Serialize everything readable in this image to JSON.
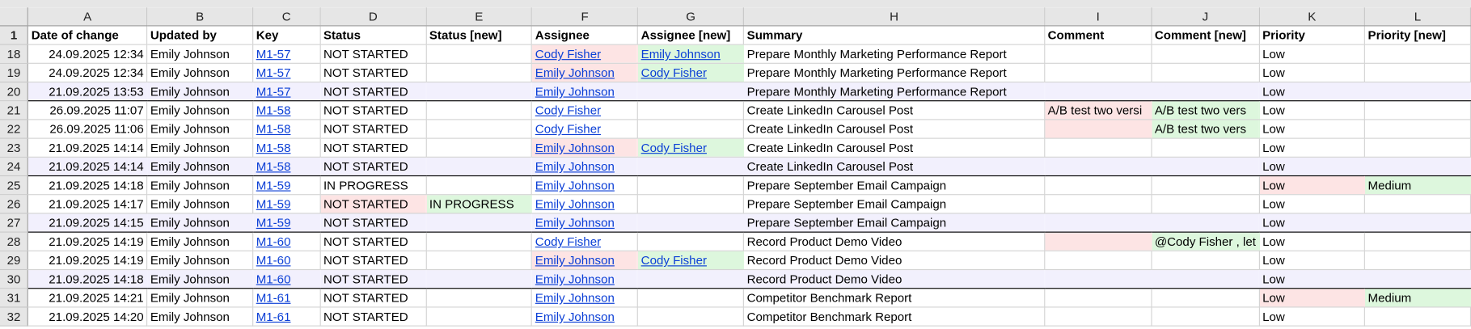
{
  "columns": [
    "A",
    "B",
    "C",
    "D",
    "E",
    "F",
    "G",
    "H",
    "I",
    "J",
    "K",
    "L"
  ],
  "header_row": {
    "num": "1",
    "cells": [
      "Date of change",
      "Updated by",
      "Key",
      "Status",
      "Status [new]",
      "Assignee",
      "Assignee [new]",
      "Summary",
      "Comment",
      "Comment [new]",
      "Priority",
      "Priority [new]"
    ]
  },
  "highlight_colors": {
    "pink": "#fde4e4",
    "green": "#ddf7dd",
    "group_row": "#f2f0fd",
    "link": "#0b3fd6"
  },
  "rows": [
    {
      "num": "18",
      "cells": [
        "24.09.2025 12:34",
        "Emily Johnson",
        "M1-57",
        "NOT STARTED",
        "",
        "Cody Fisher",
        "Emily Johnson",
        "Prepare Monthly Marketing Performance Report",
        "",
        "",
        "Low",
        ""
      ],
      "hl": {
        "F": "pink",
        "G": "green"
      }
    },
    {
      "num": "19",
      "cells": [
        "24.09.2025 12:34",
        "Emily Johnson",
        "M1-57",
        "NOT STARTED",
        "",
        "Emily Johnson",
        "Cody Fisher",
        "Prepare Monthly Marketing Performance Report",
        "",
        "",
        "Low",
        ""
      ],
      "hl": {
        "F": "pink",
        "G": "green"
      }
    },
    {
      "num": "20",
      "cells": [
        "21.09.2025 13:53",
        "Emily Johnson",
        "M1-57",
        "NOT STARTED",
        "",
        "Emily Johnson",
        "",
        "Prepare Monthly Marketing Performance Report",
        "",
        "",
        "Low",
        ""
      ],
      "group": true
    },
    {
      "num": "21",
      "cells": [
        "26.09.2025 11:07",
        "Emily Johnson",
        "M1-58",
        "NOT STARTED",
        "",
        "Cody Fisher",
        "",
        "Create LinkedIn Carousel Post",
        "A/B test two versi",
        "A/B test two vers",
        "Low",
        ""
      ],
      "hl": {
        "I": "pink",
        "J": "green"
      }
    },
    {
      "num": "22",
      "cells": [
        "26.09.2025 11:06",
        "Emily Johnson",
        "M1-58",
        "NOT STARTED",
        "",
        "Cody Fisher",
        "",
        "Create LinkedIn Carousel Post",
        "",
        "A/B test two vers",
        "Low",
        ""
      ],
      "hl": {
        "I": "pink",
        "J": "green"
      }
    },
    {
      "num": "23",
      "cells": [
        "21.09.2025 14:14",
        "Emily Johnson",
        "M1-58",
        "NOT STARTED",
        "",
        "Emily Johnson",
        "Cody Fisher",
        "Create LinkedIn Carousel Post",
        "",
        "",
        "Low",
        ""
      ],
      "hl": {
        "F": "pink",
        "G": "green"
      }
    },
    {
      "num": "24",
      "cells": [
        "21.09.2025 14:14",
        "Emily Johnson",
        "M1-58",
        "NOT STARTED",
        "",
        "Emily Johnson",
        "",
        "Create LinkedIn Carousel Post",
        "",
        "",
        "Low",
        ""
      ],
      "group": true
    },
    {
      "num": "25",
      "cells": [
        "21.09.2025 14:18",
        "Emily Johnson",
        "M1-59",
        "IN PROGRESS",
        "",
        "Emily Johnson",
        "",
        "Prepare September Email Campaign",
        "",
        "",
        "Low",
        "Medium"
      ],
      "hl": {
        "K": "pink",
        "L": "green"
      }
    },
    {
      "num": "26",
      "cells": [
        "21.09.2025 14:17",
        "Emily Johnson",
        "M1-59",
        "NOT STARTED",
        "IN PROGRESS",
        "Emily Johnson",
        "",
        "Prepare September Email Campaign",
        "",
        "",
        "Low",
        ""
      ],
      "hl": {
        "D": "pink",
        "E": "green"
      }
    },
    {
      "num": "27",
      "cells": [
        "21.09.2025 14:15",
        "Emily Johnson",
        "M1-59",
        "NOT STARTED",
        "",
        "Emily Johnson",
        "",
        "Prepare September Email Campaign",
        "",
        "",
        "Low",
        ""
      ],
      "group": true
    },
    {
      "num": "28",
      "cells": [
        "21.09.2025 14:19",
        "Emily Johnson",
        "M1-60",
        "NOT STARTED",
        "",
        "Cody Fisher",
        "",
        "Record Product Demo Video",
        "",
        "@Cody Fisher , let",
        "Low",
        ""
      ],
      "hl": {
        "I": "pink",
        "J": "green"
      }
    },
    {
      "num": "29",
      "cells": [
        "21.09.2025 14:19",
        "Emily Johnson",
        "M1-60",
        "NOT STARTED",
        "",
        "Emily Johnson",
        "Cody Fisher",
        "Record Product Demo Video",
        "",
        "",
        "Low",
        ""
      ],
      "hl": {
        "F": "pink",
        "G": "green"
      }
    },
    {
      "num": "30",
      "cells": [
        "21.09.2025 14:18",
        "Emily Johnson",
        "M1-60",
        "NOT STARTED",
        "",
        "Emily Johnson",
        "",
        "Record Product Demo Video",
        "",
        "",
        "Low",
        ""
      ],
      "group": true
    },
    {
      "num": "31",
      "cells": [
        "21.09.2025 14:21",
        "Emily Johnson",
        "M1-61",
        "NOT STARTED",
        "",
        "Emily Johnson",
        "",
        "Competitor Benchmark Report",
        "",
        "",
        "Low",
        "Medium"
      ],
      "hl": {
        "K": "pink",
        "L": "green"
      }
    },
    {
      "num": "32",
      "cells": [
        "21.09.2025 14:20",
        "Emily Johnson",
        "M1-61",
        "NOT STARTED",
        "",
        "Emily Johnson",
        "",
        "Competitor Benchmark Report",
        "",
        "",
        "Low",
        ""
      ]
    }
  ]
}
